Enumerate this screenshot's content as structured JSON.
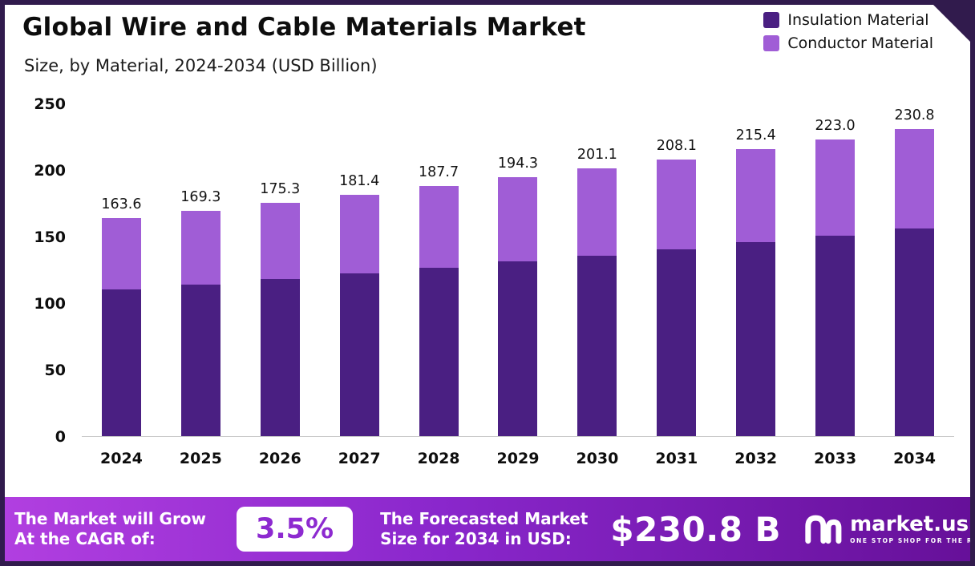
{
  "meta": {
    "title": "Global Wire and Cable Materials Market",
    "subtitle": "Size, by Material, 2024-2034 (USD Billion)"
  },
  "legend": [
    {
      "label": "Insulation Material",
      "color": "#4a1f82"
    },
    {
      "label": "Conductor Material",
      "color": "#a05dd6"
    }
  ],
  "chart_data": {
    "type": "bar",
    "stacked": true,
    "title": "Global Wire and Cable Materials Market Size, by Material, 2024-2034 (USD Billion)",
    "categories": [
      "2024",
      "2025",
      "2026",
      "2027",
      "2028",
      "2029",
      "2030",
      "2031",
      "2032",
      "2033",
      "2034"
    ],
    "series": [
      {
        "name": "Insulation Material",
        "color": "#4a1f82",
        "values": [
          110.0,
          114.0,
          118.2,
          122.3,
          126.8,
          131.2,
          135.8,
          140.6,
          145.5,
          150.5,
          155.8
        ]
      },
      {
        "name": "Conductor Material",
        "color": "#a05dd6",
        "values": [
          53.6,
          55.3,
          57.1,
          59.1,
          60.9,
          63.1,
          65.3,
          67.5,
          69.9,
          72.5,
          75.0
        ]
      }
    ],
    "totals": [
      163.6,
      169.3,
      175.3,
      181.4,
      187.7,
      194.3,
      201.1,
      208.1,
      215.4,
      223.0,
      230.8
    ],
    "total_labels": [
      "163.6",
      "169.3",
      "175.3",
      "181.4",
      "187.7",
      "194.3",
      "201.1",
      "208.1",
      "215.4",
      "223.0",
      "230.8"
    ],
    "xlabel": "",
    "ylabel": "USD Billion",
    "ylim": [
      0,
      250
    ],
    "yticks": [
      0,
      50,
      100,
      150,
      200,
      250
    ],
    "grid": false,
    "legend_position": "top-right"
  },
  "footer": {
    "cagr_label_line1": "The Market will Grow",
    "cagr_label_line2": "At the CAGR of:",
    "cagr_value": "3.5%",
    "forecast_label_line1": "The Forecasted Market",
    "forecast_label_line2": "Size for 2034 in USD:",
    "forecast_value": "$230.8 B",
    "brand": "market.us",
    "brand_tagline": "ONE STOP SHOP FOR THE REPORTS"
  }
}
